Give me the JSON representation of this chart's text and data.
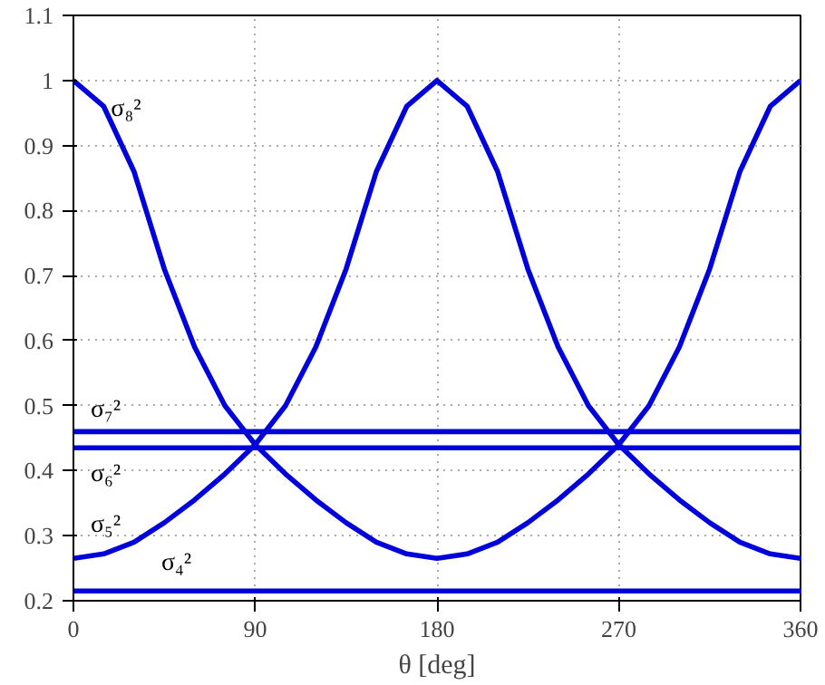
{
  "chart_data": {
    "type": "line",
    "xlabel": "θ [deg]",
    "xlim": [
      0,
      360
    ],
    "xticks": [
      0,
      90,
      180,
      270,
      360
    ],
    "ylim": [
      0.2,
      1.1
    ],
    "yticks": [
      0.2,
      0.3,
      0.4,
      0.5,
      0.6,
      0.7,
      0.8,
      0.9,
      1,
      1.1
    ],
    "grid": true,
    "legend": false,
    "marker": "none",
    "line_style": "solid",
    "x": [
      0,
      15,
      30,
      45,
      60,
      75,
      90,
      105,
      120,
      135,
      150,
      165,
      180,
      195,
      210,
      225,
      240,
      255,
      270,
      285,
      300,
      315,
      330,
      345,
      360
    ],
    "series": [
      {
        "name": "σ₈²",
        "color": "#0000dd",
        "values": [
          1.0,
          0.96,
          0.86,
          0.71,
          0.59,
          0.5,
          0.44,
          0.395,
          0.355,
          0.32,
          0.29,
          0.272,
          0.265,
          0.272,
          0.29,
          0.32,
          0.355,
          0.395,
          0.44,
          0.5,
          0.59,
          0.71,
          0.86,
          0.96,
          1.0
        ]
      },
      {
        "name": "σ₇²",
        "color": "#0000dd",
        "values": [
          0.46,
          0.46,
          0.46,
          0.46,
          0.46,
          0.46,
          0.46,
          0.46,
          0.46,
          0.46,
          0.46,
          0.46,
          0.46,
          0.46,
          0.46,
          0.46,
          0.46,
          0.46,
          0.46,
          0.46,
          0.46,
          0.46,
          0.46,
          0.46,
          0.46
        ]
      },
      {
        "name": "σ₆²",
        "color": "#0000dd",
        "values": [
          0.435,
          0.435,
          0.435,
          0.435,
          0.435,
          0.435,
          0.435,
          0.435,
          0.435,
          0.435,
          0.435,
          0.435,
          0.435,
          0.435,
          0.435,
          0.435,
          0.435,
          0.435,
          0.435,
          0.435,
          0.435,
          0.435,
          0.435,
          0.435,
          0.435
        ]
      },
      {
        "name": "σ₅²",
        "color": "#0000dd",
        "values": [
          0.265,
          0.272,
          0.29,
          0.32,
          0.355,
          0.395,
          0.44,
          0.5,
          0.59,
          0.71,
          0.86,
          0.96,
          1.0,
          0.96,
          0.86,
          0.71,
          0.59,
          0.5,
          0.44,
          0.395,
          0.355,
          0.32,
          0.29,
          0.272,
          0.265
        ]
      },
      {
        "name": "σ₄²",
        "color": "#0000dd",
        "values": [
          0.215,
          0.215,
          0.215,
          0.215,
          0.215,
          0.215,
          0.215,
          0.215,
          0.215,
          0.215,
          0.215,
          0.215,
          0.215,
          0.215,
          0.215,
          0.215,
          0.215,
          0.215,
          0.215,
          0.215,
          0.215,
          0.215,
          0.215,
          0.215,
          0.215
        ]
      }
    ]
  }
}
